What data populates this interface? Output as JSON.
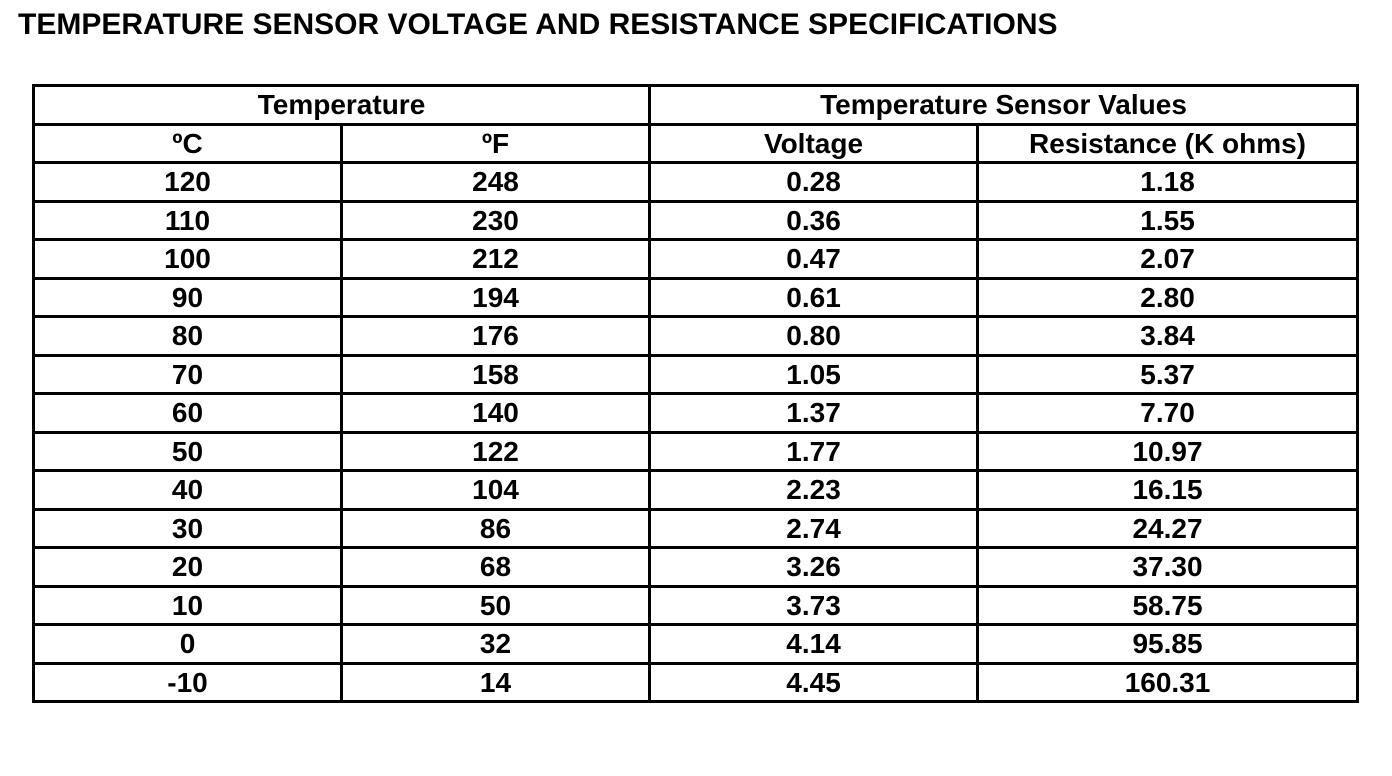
{
  "title": "TEMPERATURE SENSOR VOLTAGE AND RESISTANCE SPECIFICATIONS",
  "table": {
    "groups": [
      "Temperature",
      "Temperature Sensor Values"
    ],
    "columns": [
      "ºC",
      "ºF",
      "Voltage",
      "Resistance (K ohms)"
    ],
    "rows": [
      [
        "120",
        "248",
        "0.28",
        "1.18"
      ],
      [
        "110",
        "230",
        "0.36",
        "1.55"
      ],
      [
        "100",
        "212",
        "0.47",
        "2.07"
      ],
      [
        "90",
        "194",
        "0.61",
        "2.80"
      ],
      [
        "80",
        "176",
        "0.80",
        "3.84"
      ],
      [
        "70",
        "158",
        "1.05",
        "5.37"
      ],
      [
        "60",
        "140",
        "1.37",
        "7.70"
      ],
      [
        "50",
        "122",
        "1.77",
        "10.97"
      ],
      [
        "40",
        "104",
        "2.23",
        "16.15"
      ],
      [
        "30",
        "86",
        "2.74",
        "24.27"
      ],
      [
        "20",
        "68",
        "3.26",
        "37.30"
      ],
      [
        "10",
        "50",
        "3.73",
        "58.75"
      ],
      [
        "0",
        "32",
        "4.14",
        "95.85"
      ],
      [
        "-10",
        "14",
        "4.45",
        "160.31"
      ]
    ]
  }
}
